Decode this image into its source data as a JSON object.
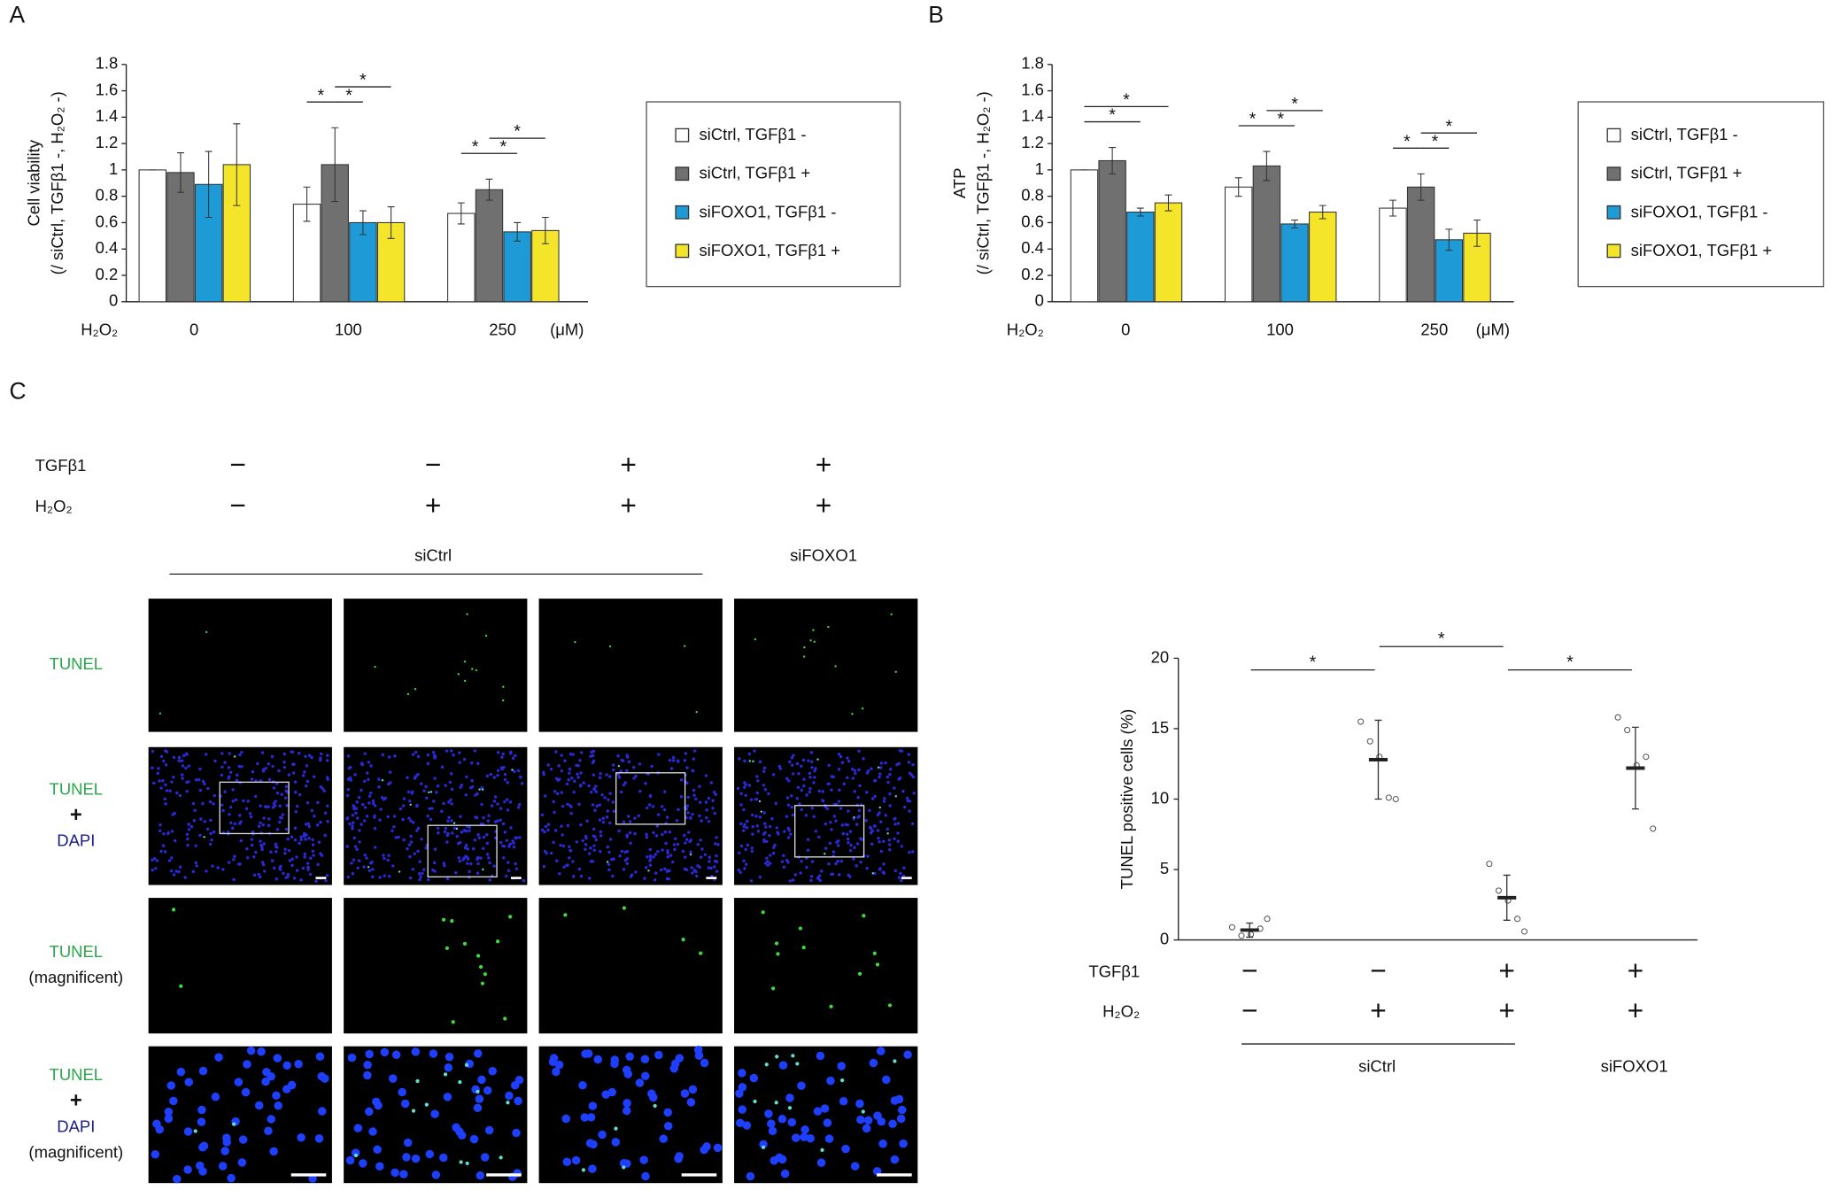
{
  "panel_labels": {
    "a": "A",
    "b": "B",
    "c": "C"
  },
  "chart_data": [
    {
      "type": "bar",
      "y_label": [
        "Cell viability",
        "(/ siCtrl, TGFβ1 -, H₂O₂ -)"
      ],
      "x_label": "H₂O₂",
      "x_unit": "(μM)",
      "categories": [
        "0",
        "100",
        "250"
      ],
      "ylim": [
        0,
        1.8
      ],
      "yticks": [
        0,
        0.2,
        0.4,
        0.6,
        0.8,
        1,
        1.2,
        1.4,
        1.6,
        1.8
      ],
      "series": [
        {
          "name": "siCtrl, TGFβ1 -",
          "color": "#ffffff",
          "values": [
            1,
            0.74,
            0.67
          ],
          "errors": [
            0,
            0.13,
            0.08
          ]
        },
        {
          "name": "siCtrl, TGFβ1 +",
          "color": "#707070",
          "values": [
            0.98,
            1.04,
            0.85
          ],
          "errors": [
            0.15,
            0.28,
            0.08
          ]
        },
        {
          "name": "siFOXO1, TGFβ1 -",
          "color": "#1e9bd7",
          "values": [
            0.89,
            0.6,
            0.53
          ],
          "errors": [
            0.25,
            0.09,
            0.07
          ]
        },
        {
          "name": "siFOXO1, TGFβ1 +",
          "color": "#f5e52a",
          "values": [
            1.04,
            0.6,
            0.54
          ],
          "errors": [
            0.31,
            0.12,
            0.1
          ]
        }
      ],
      "comparisons": [
        {
          "group": 1,
          "between": [
            0,
            1
          ],
          "label": "*"
        },
        {
          "group": 1,
          "between": [
            1,
            2
          ],
          "label": "*"
        },
        {
          "group": 1,
          "between": [
            1,
            3
          ],
          "label": "*"
        },
        {
          "group": 2,
          "between": [
            0,
            1
          ],
          "label": "*"
        },
        {
          "group": 2,
          "between": [
            1,
            2
          ],
          "label": "*"
        },
        {
          "group": 2,
          "between": [
            1,
            3
          ],
          "label": "*"
        }
      ]
    },
    {
      "type": "bar",
      "y_label": [
        "ATP",
        "(/ siCtrl, TGFβ1 -, H₂O₂ -)"
      ],
      "x_label": "H₂O₂",
      "x_unit": "(μM)",
      "categories": [
        "0",
        "100",
        "250"
      ],
      "ylim": [
        0,
        1.8
      ],
      "yticks": [
        0,
        0.2,
        0.4,
        0.6,
        0.8,
        1,
        1.2,
        1.4,
        1.6,
        1.8
      ],
      "series": [
        {
          "name": "siCtrl, TGFβ1 -",
          "color": "#ffffff",
          "values": [
            1,
            0.87,
            0.71
          ],
          "errors": [
            0,
            0.07,
            0.06
          ]
        },
        {
          "name": "siCtrl, TGFβ1 +",
          "color": "#707070",
          "values": [
            1.07,
            1.03,
            0.87
          ],
          "errors": [
            0.1,
            0.11,
            0.1
          ]
        },
        {
          "name": "siFOXO1, TGFβ1 -",
          "color": "#1e9bd7",
          "values": [
            0.68,
            0.59,
            0.47
          ],
          "errors": [
            0.03,
            0.03,
            0.08
          ]
        },
        {
          "name": "siFOXO1, TGFβ1 +",
          "color": "#f5e52a",
          "values": [
            0.75,
            0.68,
            0.52
          ],
          "errors": [
            0.06,
            0.05,
            0.1
          ]
        }
      ],
      "comparisons": [
        {
          "group": 0,
          "between": [
            0,
            2
          ],
          "label": "*"
        },
        {
          "group": 0,
          "between": [
            0,
            3
          ],
          "label": "*"
        },
        {
          "group": 1,
          "between": [
            0,
            1
          ],
          "label": "*"
        },
        {
          "group": 1,
          "between": [
            1,
            2
          ],
          "label": "*"
        },
        {
          "group": 1,
          "between": [
            1,
            3
          ],
          "label": "*"
        },
        {
          "group": 2,
          "between": [
            0,
            1
          ],
          "label": "*"
        },
        {
          "group": 2,
          "between": [
            1,
            2
          ],
          "label": "*"
        },
        {
          "group": 2,
          "between": [
            1,
            3
          ],
          "label": "*"
        }
      ]
    },
    {
      "type": "dot",
      "y_label": "TUNEL positive cells (%)",
      "ylim": [
        0,
        20
      ],
      "yticks": [
        0,
        5,
        10,
        15,
        20
      ],
      "row_labels": [
        "TGFβ1",
        "H₂O₂"
      ],
      "rows": [
        [
          "−",
          "−",
          "+",
          "+"
        ],
        [
          "−",
          "+",
          "+",
          "+"
        ]
      ],
      "groups": [
        {
          "label": "siCtrl",
          "members": [
            0,
            1,
            2
          ]
        },
        {
          "label": "siFOXO1",
          "members": [
            3
          ]
        }
      ],
      "means": [
        0.7,
        12.8,
        3.0,
        12.2
      ],
      "sd": [
        0.5,
        2.8,
        1.6,
        2.9
      ],
      "points": [
        [
          0.9,
          0.3,
          0.4,
          0.8,
          1.5
        ],
        [
          15.5,
          14.1,
          13.0,
          10.1,
          10.0
        ],
        [
          5.4,
          3.5,
          2.8,
          1.5,
          0.6
        ],
        [
          15.8,
          14.9,
          12.4,
          13.0,
          7.9
        ]
      ],
      "comparisons": [
        {
          "between": [
            0,
            1
          ],
          "label": "*"
        },
        {
          "between": [
            1,
            2
          ],
          "label": "*"
        },
        {
          "between": [
            2,
            3
          ],
          "label": "*"
        }
      ]
    }
  ],
  "micrographs": {
    "row_labels": [
      "TGFβ1",
      "H₂O₂"
    ],
    "rows": [
      [
        "−",
        "−",
        "+",
        "+"
      ],
      [
        "−",
        "+",
        "+",
        "+"
      ]
    ],
    "groups": [
      {
        "label": "siCtrl",
        "members": [
          0,
          1,
          2
        ]
      },
      {
        "label": "siFOXO1",
        "members": [
          3
        ]
      }
    ],
    "image_rows": [
      [
        "TUNEL"
      ],
      [
        "TUNEL",
        "+",
        "DAPI"
      ],
      [
        "TUNEL",
        "(magnificent)"
      ],
      [
        "TUNEL",
        "+",
        "DAPI",
        "(magnificent)"
      ]
    ]
  }
}
